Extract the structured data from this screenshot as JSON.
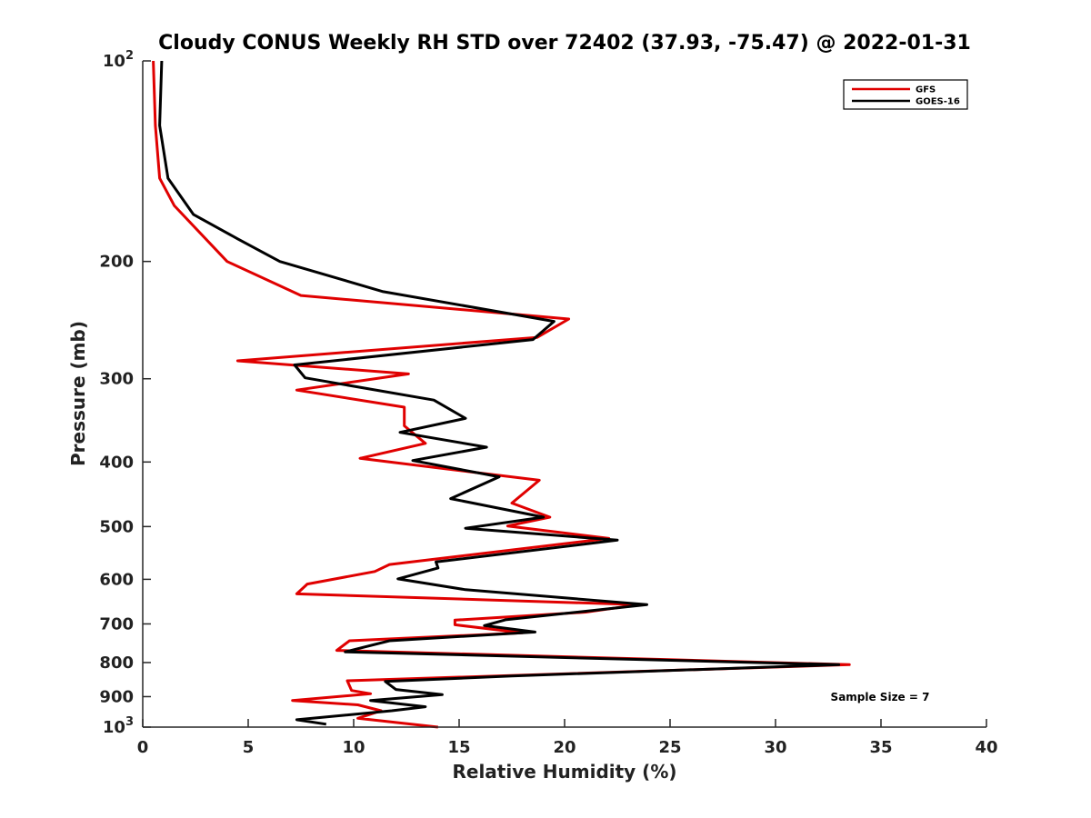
{
  "chart_data": {
    "type": "line",
    "title": "Cloudy CONUS Weekly RH STD over 72402 (37.93, -75.47) @ 2022-01-31",
    "xlabel": "Relative Humidity (%)",
    "ylabel": "Pressure (mb)",
    "xlim": [
      0,
      40
    ],
    "ylim": [
      100,
      1000
    ],
    "y_scale": "log",
    "y_reversed": true,
    "grid": false,
    "legend_position": "top-right",
    "x_ticks": [
      {
        "value": 0,
        "label": "0"
      },
      {
        "value": 5,
        "label": "5"
      },
      {
        "value": 10,
        "label": "10"
      },
      {
        "value": 15,
        "label": "15"
      },
      {
        "value": 20,
        "label": "20"
      },
      {
        "value": 25,
        "label": "25"
      },
      {
        "value": 30,
        "label": "30"
      },
      {
        "value": 35,
        "label": "35"
      },
      {
        "value": 40,
        "label": "40"
      }
    ],
    "y_ticks": [
      {
        "value": 100,
        "label": "10",
        "sup": "2"
      },
      {
        "value": 200,
        "label": "200"
      },
      {
        "value": 300,
        "label": "300"
      },
      {
        "value": 400,
        "label": "400"
      },
      {
        "value": 500,
        "label": "500"
      },
      {
        "value": 600,
        "label": "600"
      },
      {
        "value": 700,
        "label": "700"
      },
      {
        "value": 800,
        "label": "800"
      },
      {
        "value": 900,
        "label": "900"
      },
      {
        "value": 1000,
        "label": "10",
        "sup": "3"
      }
    ],
    "annotation": "Sample Size = 7",
    "series": [
      {
        "name": "GFS",
        "color": "#e00000",
        "points": [
          [
            0.5,
            100
          ],
          [
            0.6,
            125
          ],
          [
            0.8,
            150
          ],
          [
            1.5,
            165
          ],
          [
            4.0,
            200
          ],
          [
            7.5,
            225
          ],
          [
            20.2,
            244
          ],
          [
            18.7,
            260
          ],
          [
            4.5,
            282
          ],
          [
            12.6,
            295
          ],
          [
            7.3,
            312
          ],
          [
            12.4,
            331
          ],
          [
            12.4,
            353
          ],
          [
            13.4,
            375
          ],
          [
            10.3,
            395
          ],
          [
            18.8,
            426
          ],
          [
            17.5,
            461
          ],
          [
            19.3,
            484
          ],
          [
            17.3,
            499
          ],
          [
            22.1,
            521
          ],
          [
            15.0,
            554
          ],
          [
            11.7,
            570
          ],
          [
            11.0,
            584
          ],
          [
            7.8,
            610
          ],
          [
            7.3,
            631
          ],
          [
            23.5,
            655
          ],
          [
            21.0,
            672
          ],
          [
            14.8,
            691
          ],
          [
            14.8,
            702
          ],
          [
            18.0,
            722
          ],
          [
            9.8,
            742
          ],
          [
            9.2,
            767
          ],
          [
            33.5,
            806
          ],
          [
            9.7,
            852
          ],
          [
            9.9,
            881
          ],
          [
            10.8,
            891
          ],
          [
            7.1,
            912
          ],
          [
            10.2,
            926
          ],
          [
            11.3,
            945
          ],
          [
            10.2,
            970
          ],
          [
            14.0,
            1000
          ]
        ]
      },
      {
        "name": "GOES-16",
        "color": "#000000",
        "points": [
          [
            0.9,
            100
          ],
          [
            0.8,
            125
          ],
          [
            1.2,
            150
          ],
          [
            2.4,
            170
          ],
          [
            4.5,
            185
          ],
          [
            6.5,
            200
          ],
          [
            11.4,
            222
          ],
          [
            19.5,
            246
          ],
          [
            18.5,
            262
          ],
          [
            7.2,
            286
          ],
          [
            7.7,
            299
          ],
          [
            13.8,
            323
          ],
          [
            15.3,
            344
          ],
          [
            12.2,
            361
          ],
          [
            16.3,
            380
          ],
          [
            12.8,
            398
          ],
          [
            16.9,
            421
          ],
          [
            14.6,
            454
          ],
          [
            19.0,
            484
          ],
          [
            15.3,
            503
          ],
          [
            22.5,
            524
          ],
          [
            13.9,
            565
          ],
          [
            14.0,
            577
          ],
          [
            12.1,
            599
          ],
          [
            15.3,
            622
          ],
          [
            23.9,
            655
          ],
          [
            17.2,
            690
          ],
          [
            16.2,
            704
          ],
          [
            18.6,
            720
          ],
          [
            11.7,
            742
          ],
          [
            9.6,
            771
          ],
          [
            33.0,
            806
          ],
          [
            17.5,
            838
          ],
          [
            11.5,
            854
          ],
          [
            12.0,
            878
          ],
          [
            14.2,
            894
          ],
          [
            10.8,
            912
          ],
          [
            13.4,
            932
          ],
          [
            11.8,
            945
          ],
          [
            7.3,
            975
          ],
          [
            8.7,
            990
          ]
        ]
      }
    ]
  }
}
